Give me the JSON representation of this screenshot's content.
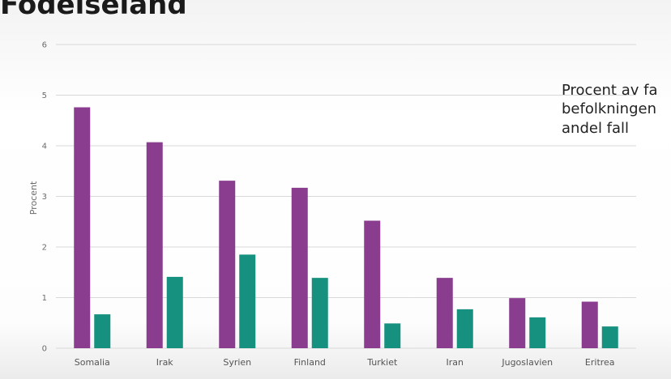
{
  "slide": {
    "title": "Födelseland",
    "legend_lines": [
      "Procent av fa",
      "befolkningen",
      "andel fall"
    ]
  },
  "colors": {
    "series1": "#8a3d8f",
    "series2": "#16907f",
    "grid": "#d9d9d9"
  },
  "chart_data": {
    "type": "bar",
    "title": "",
    "ylabel": "Procent",
    "xlabel": "",
    "ylim": [
      0,
      6
    ],
    "yticks": [
      0,
      1,
      2,
      3,
      4,
      5,
      6
    ],
    "grid": true,
    "categories": [
      "Somalia",
      "Irak",
      "Syrien",
      "Finland",
      "Turkiet",
      "Iran",
      "Jugoslavien",
      "Eritrea"
    ],
    "series": [
      {
        "values": [
          4.76,
          4.07,
          3.31,
          3.17,
          2.52,
          1.39,
          0.99,
          0.92
        ]
      },
      {
        "values": [
          0.67,
          1.41,
          1.85,
          1.39,
          0.49,
          0.77,
          0.61,
          0.43
        ]
      }
    ]
  }
}
